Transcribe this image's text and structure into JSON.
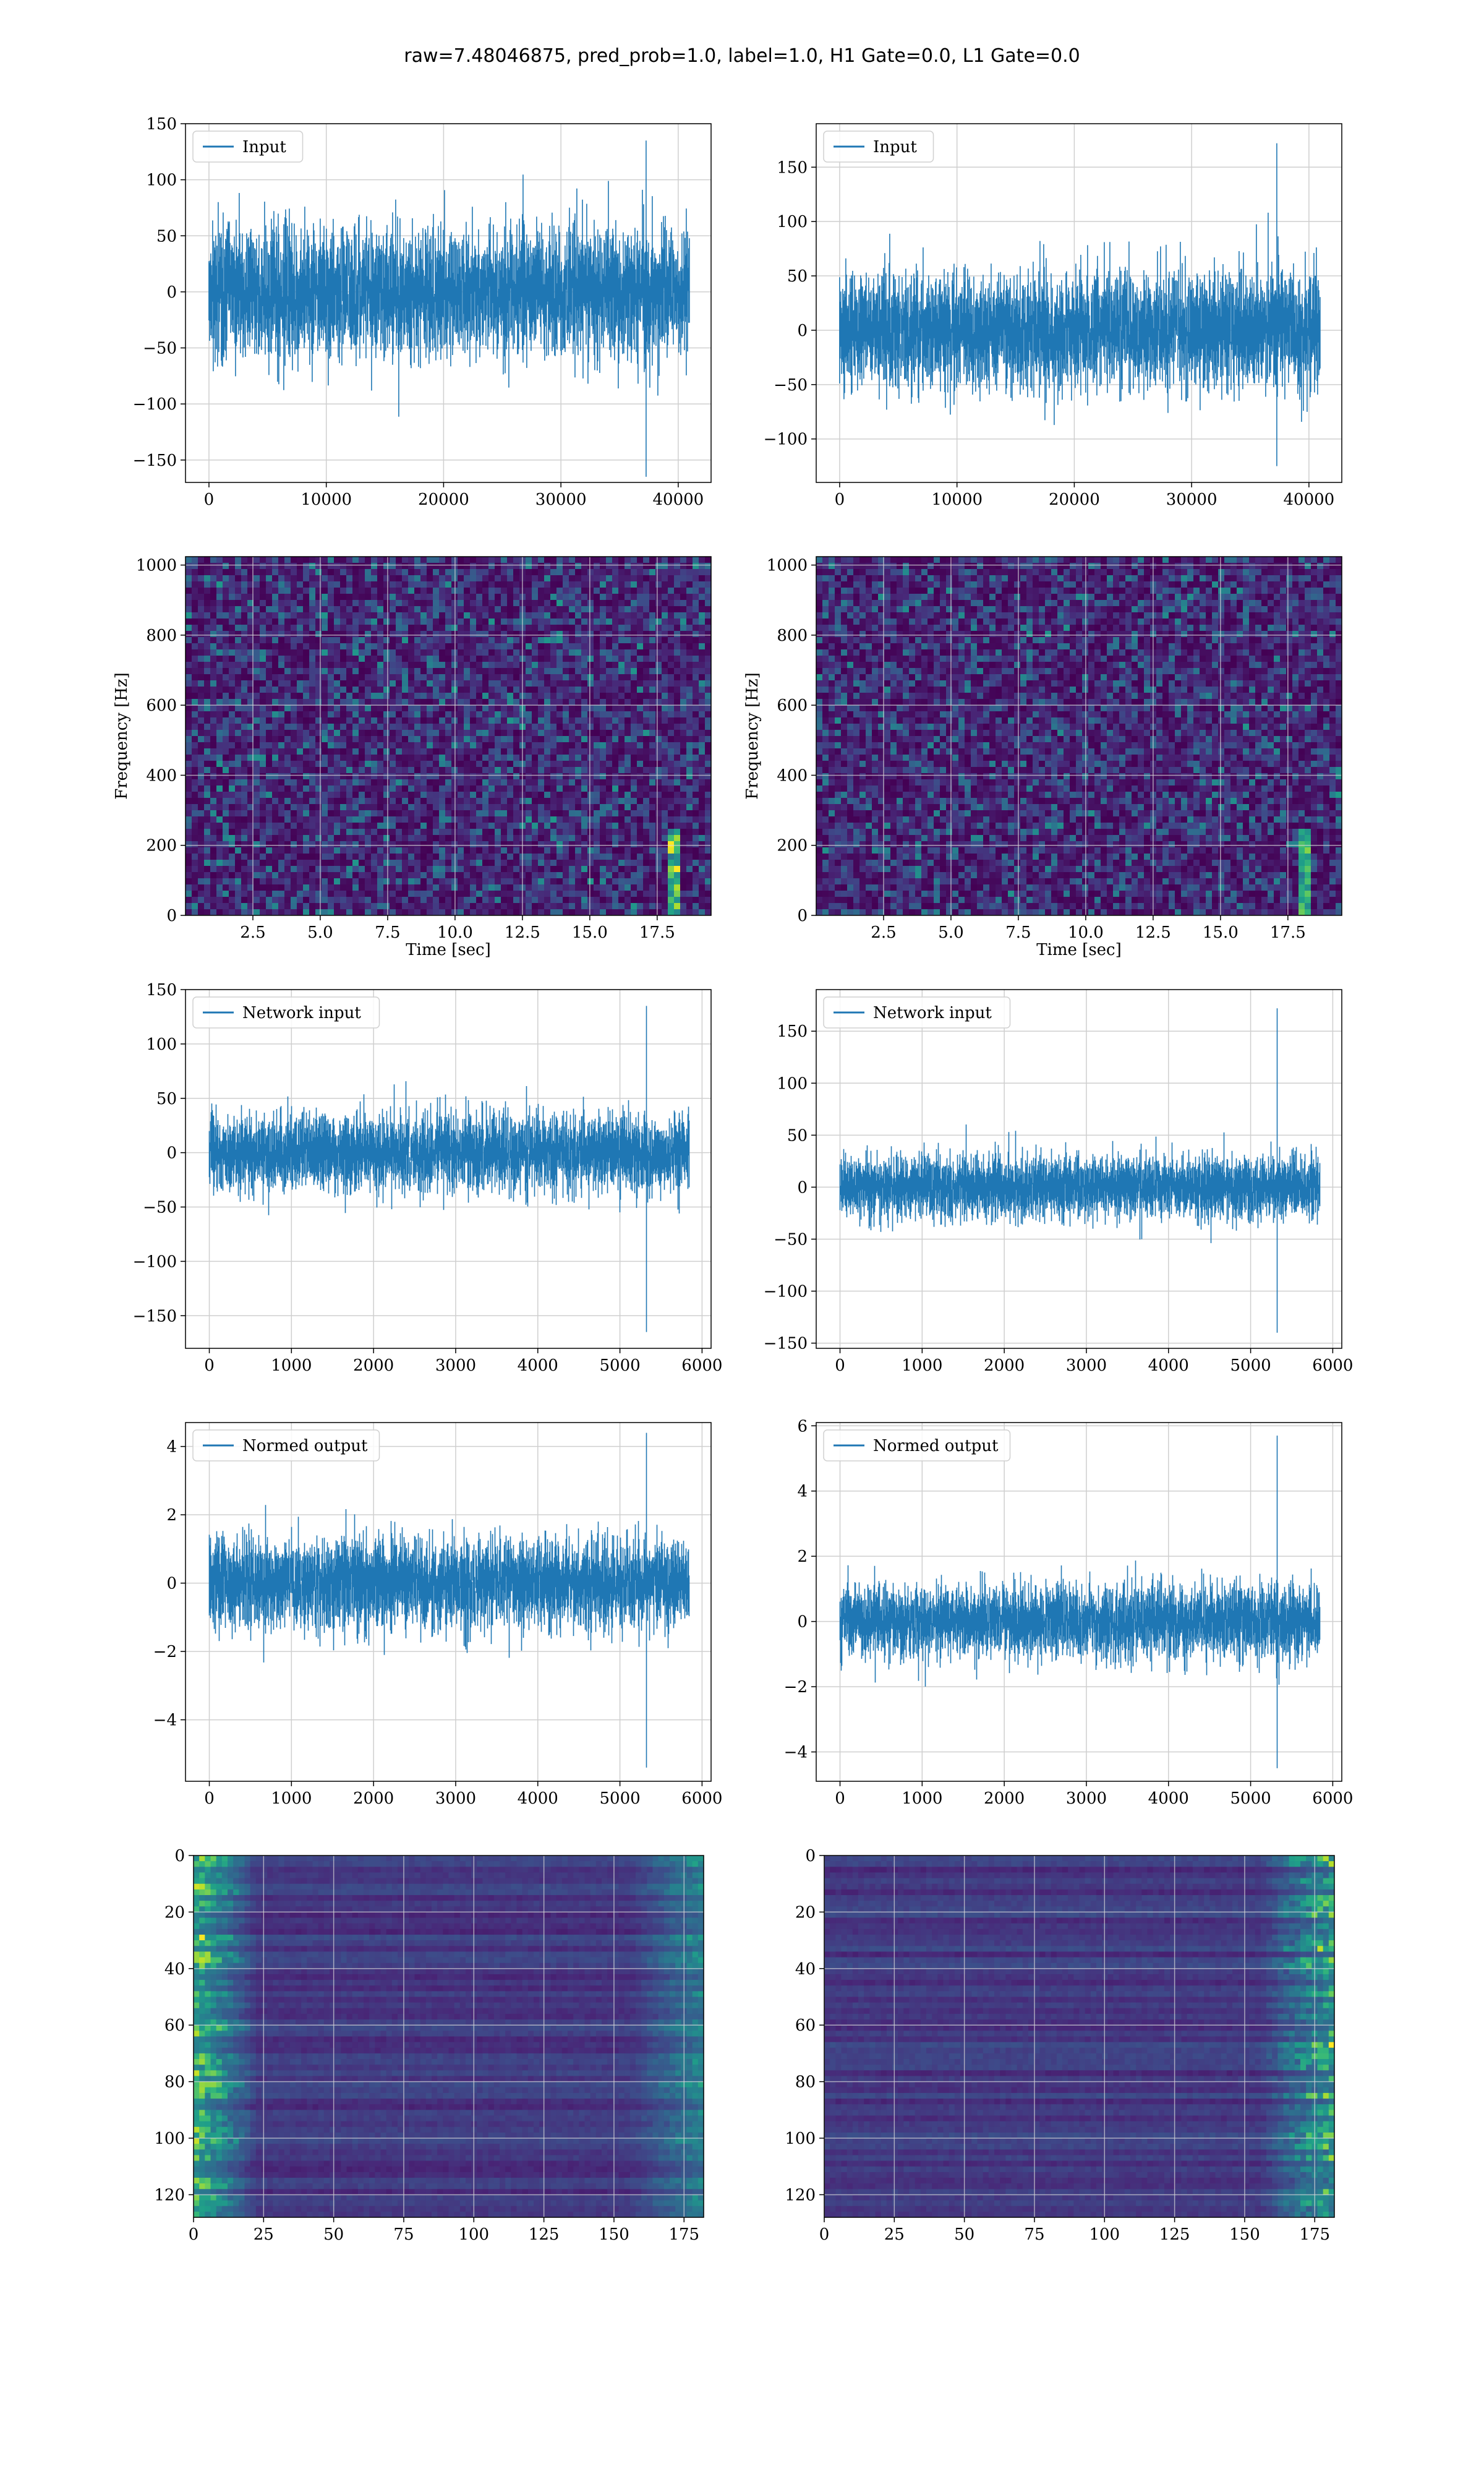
{
  "figure": {
    "suptitle": "raw=7.48046875, pred_prob=1.0, label=1.0, H1 Gate=0.0, L1 Gate=0.0",
    "colors": {
      "series": "#1f77b4",
      "grid": "#cfcfcf",
      "viridis_low": "#440154",
      "viridis_high": "#fde725"
    }
  },
  "chart_data": [
    {
      "id": "r1c1",
      "type": "line",
      "legend": "Input",
      "xlim": [
        -2000,
        42800
      ],
      "ylim": [
        -170,
        150
      ],
      "xticks": [
        0,
        10000,
        20000,
        30000,
        40000
      ],
      "yticks": [
        -150,
        -100,
        -50,
        0,
        50,
        100,
        150
      ],
      "x_range": [
        0,
        40960
      ],
      "y_envelope": [
        -165,
        135
      ],
      "y_typical": 65
    },
    {
      "id": "r1c2",
      "type": "line",
      "legend": "Input",
      "xlim": [
        -2000,
        42800
      ],
      "ylim": [
        -140,
        190
      ],
      "xticks": [
        0,
        10000,
        20000,
        30000,
        40000
      ],
      "yticks": [
        -100,
        -50,
        0,
        50,
        100,
        150
      ],
      "x_range": [
        0,
        40960
      ],
      "y_envelope": [
        -125,
        172
      ],
      "y_typical": 60
    },
    {
      "id": "r2c1",
      "type": "heatmap",
      "xlabel": "Time [sec]",
      "ylabel": "Frequency [Hz]",
      "xlim": [
        0,
        19.5
      ],
      "ylim": [
        0,
        1024
      ],
      "xticks": [
        2.5,
        5.0,
        7.5,
        10.0,
        12.5,
        15.0,
        17.5
      ],
      "yticks": [
        0,
        200,
        400,
        600,
        800,
        1000
      ],
      "colormap": "viridis",
      "feature": "faint chirp near 18 s below 250 Hz"
    },
    {
      "id": "r2c2",
      "type": "heatmap",
      "xlabel": "Time [sec]",
      "ylabel": "Frequency [Hz]",
      "xlim": [
        0,
        19.5
      ],
      "ylim": [
        0,
        1024
      ],
      "xticks": [
        2.5,
        5.0,
        7.5,
        10.0,
        12.5,
        15.0,
        17.5
      ],
      "yticks": [
        0,
        200,
        400,
        600,
        800,
        1000
      ],
      "colormap": "viridis",
      "feature": "faint chirp near 18 s below 250 Hz"
    },
    {
      "id": "r3c1",
      "type": "line",
      "legend": "Network input",
      "xlim": [
        -290,
        6110
      ],
      "ylim": [
        -180,
        150
      ],
      "xticks": [
        0,
        1000,
        2000,
        3000,
        4000,
        5000,
        6000
      ],
      "yticks": [
        -150,
        -100,
        -50,
        0,
        50,
        100,
        150
      ],
      "x_range": [
        0,
        5850
      ],
      "y_envelope": [
        -165,
        135
      ],
      "y_typical": 40
    },
    {
      "id": "r3c2",
      "type": "line",
      "legend": "Network input",
      "xlim": [
        -290,
        6110
      ],
      "ylim": [
        -155,
        190
      ],
      "xticks": [
        0,
        1000,
        2000,
        3000,
        4000,
        5000,
        6000
      ],
      "yticks": [
        -150,
        -100,
        -50,
        0,
        50,
        100,
        150
      ],
      "x_range": [
        0,
        5850
      ],
      "y_envelope": [
        -140,
        172
      ],
      "y_typical": 35
    },
    {
      "id": "r4c1",
      "type": "line",
      "legend": "Normed output",
      "xlim": [
        -290,
        6110
      ],
      "ylim": [
        -5.8,
        4.7
      ],
      "xticks": [
        0,
        1000,
        2000,
        3000,
        4000,
        5000,
        6000
      ],
      "yticks": [
        -4,
        -2,
        0,
        2,
        4
      ],
      "x_range": [
        0,
        5850
      ],
      "y_envelope": [
        -5.4,
        4.4
      ],
      "y_typical": 1.5
    },
    {
      "id": "r4c2",
      "type": "line",
      "legend": "Normed output",
      "xlim": [
        -290,
        6110
      ],
      "ylim": [
        -4.9,
        6.1
      ],
      "xticks": [
        0,
        1000,
        2000,
        3000,
        4000,
        5000,
        6000
      ],
      "yticks": [
        -4,
        -2,
        0,
        2,
        4,
        6
      ],
      "x_range": [
        0,
        5850
      ],
      "y_envelope": [
        -4.5,
        5.7
      ],
      "y_typical": 1.3
    },
    {
      "id": "r5c1",
      "type": "heatmap",
      "xlim": [
        0,
        182
      ],
      "ylim": [
        128,
        0
      ],
      "xticks": [
        0,
        25,
        50,
        75,
        100,
        125,
        150,
        175
      ],
      "yticks": [
        0,
        20,
        40,
        60,
        80,
        100,
        120
      ],
      "colormap": "viridis",
      "feature": "bright bands at left edge, texture at right edge"
    },
    {
      "id": "r5c2",
      "type": "heatmap",
      "xlim": [
        0,
        182
      ],
      "ylim": [
        128,
        0
      ],
      "xticks": [
        0,
        25,
        50,
        75,
        100,
        125,
        150,
        175
      ],
      "yticks": [
        0,
        20,
        40,
        60,
        80,
        100,
        120
      ],
      "colormap": "viridis",
      "feature": "bright bands near right edge"
    }
  ]
}
